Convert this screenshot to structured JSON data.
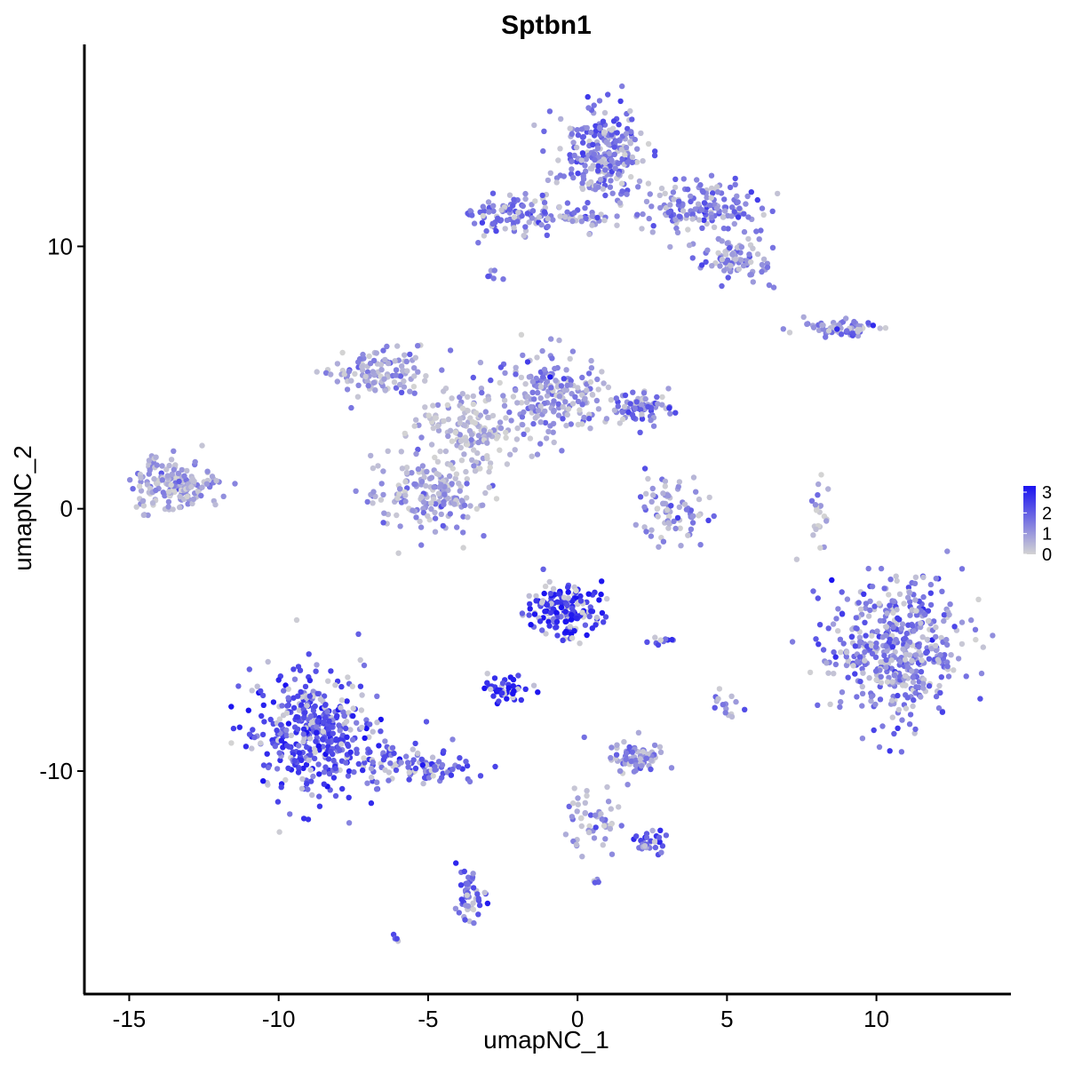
{
  "chart_data": {
    "type": "scatter",
    "title": "Sptbn1",
    "xlabel": "umapNC_1",
    "ylabel": "umapNC_2",
    "xlim": [
      -16.5,
      14.5
    ],
    "ylim": [
      -18.5,
      17.7
    ],
    "x_ticks": [
      -15,
      -10,
      -5,
      0,
      5,
      10
    ],
    "y_ticks": [
      -10,
      0,
      10
    ],
    "x_tick_labels": [
      "-15",
      "-10",
      "-5",
      "0",
      "5",
      "10"
    ],
    "y_tick_labels": [
      "-10",
      "0",
      "10"
    ],
    "grid": false,
    "legend_position": "right",
    "color_scale": {
      "low": "#d3d3d3",
      "high": "#1a12f0",
      "ticks": [
        0,
        1,
        2,
        3
      ],
      "tick_labels": [
        "0",
        "1",
        "2",
        "3"
      ],
      "range": [
        0,
        3.3
      ]
    },
    "clusters": [
      {
        "id": "top-right-body",
        "center": [
          0.8,
          13.4
        ],
        "spread": [
          0.9,
          1.3
        ],
        "count": 260,
        "expr": 1.6
      },
      {
        "id": "top-right-lobe",
        "center": [
          4.2,
          11.5
        ],
        "spread": [
          1.3,
          0.6
        ],
        "count": 150,
        "expr": 1.4
      },
      {
        "id": "top-right-lower",
        "center": [
          5.2,
          9.5
        ],
        "spread": [
          0.8,
          0.6
        ],
        "count": 90,
        "expr": 1.2
      },
      {
        "id": "top-arm-left",
        "center": [
          -2.3,
          11.2
        ],
        "spread": [
          1.0,
          0.5
        ],
        "count": 90,
        "expr": 1.7
      },
      {
        "id": "top-arm-mid",
        "center": [
          -0.2,
          11.1
        ],
        "spread": [
          1.2,
          0.3
        ],
        "count": 50,
        "expr": 1.3
      },
      {
        "id": "small-top-left",
        "center": [
          -2.9,
          8.8
        ],
        "spread": [
          0.2,
          0.2
        ],
        "count": 6,
        "expr": 1.3
      },
      {
        "id": "right-streak",
        "center": [
          8.3,
          6.9
        ],
        "spread": [
          0.8,
          0.2
        ],
        "count": 40,
        "expr": 1.1
      },
      {
        "id": "right-streak-end",
        "center": [
          9.4,
          6.9
        ],
        "spread": [
          0.4,
          0.25
        ],
        "count": 22,
        "expr": 2.0
      },
      {
        "id": "center-left-arm",
        "center": [
          -6.6,
          5.2
        ],
        "spread": [
          1.1,
          0.6
        ],
        "count": 120,
        "expr": 0.9
      },
      {
        "id": "center-hub",
        "center": [
          -3.6,
          3.0
        ],
        "spread": [
          1.2,
          1.0
        ],
        "count": 160,
        "expr": 0.5
      },
      {
        "id": "center-right-arm",
        "center": [
          -0.7,
          4.3
        ],
        "spread": [
          1.4,
          1.1
        ],
        "count": 200,
        "expr": 1.1
      },
      {
        "id": "center-right-tip",
        "center": [
          2.2,
          3.8
        ],
        "spread": [
          0.7,
          0.4
        ],
        "count": 70,
        "expr": 1.6
      },
      {
        "id": "center-bottom-lobe",
        "center": [
          -4.9,
          0.6
        ],
        "spread": [
          1.3,
          0.9
        ],
        "count": 180,
        "expr": 1.0
      },
      {
        "id": "far-left-cluster",
        "center": [
          -13.5,
          1.0
        ],
        "spread": [
          1.0,
          0.7
        ],
        "count": 170,
        "expr": 0.9
      },
      {
        "id": "mid-small-cluster",
        "center": [
          3.2,
          0.0
        ],
        "spread": [
          0.7,
          0.9
        ],
        "count": 80,
        "expr": 1.2
      },
      {
        "id": "right-thin-streak",
        "center": [
          8.1,
          0.0
        ],
        "spread": [
          0.2,
          0.9
        ],
        "count": 20,
        "expr": 0.5
      },
      {
        "id": "right-big-cluster",
        "center": [
          10.6,
          -5.3
        ],
        "spread": [
          1.6,
          1.8
        ],
        "count": 480,
        "expr": 1.6
      },
      {
        "id": "center-dark-upper",
        "center": [
          -0.4,
          -3.9
        ],
        "spread": [
          0.8,
          0.7
        ],
        "count": 180,
        "expr": 2.7
      },
      {
        "id": "center-dark-small",
        "center": [
          -2.4,
          -6.9
        ],
        "spread": [
          0.5,
          0.3
        ],
        "count": 50,
        "expr": 3.0
      },
      {
        "id": "small-bits-mid",
        "center": [
          2.9,
          -5.0
        ],
        "spread": [
          0.3,
          0.1
        ],
        "count": 10,
        "expr": 2.3
      },
      {
        "id": "small-right-dots",
        "center": [
          5.0,
          -7.5
        ],
        "spread": [
          0.3,
          0.3
        ],
        "count": 15,
        "expr": 1.3
      },
      {
        "id": "mid-low-cluster",
        "center": [
          2.0,
          -9.5
        ],
        "spread": [
          0.7,
          0.5
        ],
        "count": 70,
        "expr": 1.2
      },
      {
        "id": "big-lower-left",
        "center": [
          -8.8,
          -8.5
        ],
        "spread": [
          1.4,
          1.5
        ],
        "count": 420,
        "expr": 2.3
      },
      {
        "id": "lower-left-tail",
        "center": [
          -5.4,
          -9.8
        ],
        "spread": [
          1.3,
          0.5
        ],
        "count": 110,
        "expr": 2.0
      },
      {
        "id": "lower-left-bottom",
        "center": [
          -3.6,
          -14.7
        ],
        "spread": [
          0.35,
          0.7
        ],
        "count": 50,
        "expr": 1.9
      },
      {
        "id": "lower-mid-branch",
        "center": [
          0.5,
          -11.8
        ],
        "spread": [
          0.5,
          0.9
        ],
        "count": 50,
        "expr": 1.0
      },
      {
        "id": "lower-mid-branch-end",
        "center": [
          2.4,
          -12.7
        ],
        "spread": [
          0.4,
          0.3
        ],
        "count": 30,
        "expr": 1.8
      },
      {
        "id": "tiny-bottom-1",
        "center": [
          -6.1,
          -16.4
        ],
        "spread": [
          0.1,
          0.1
        ],
        "count": 4,
        "expr": 2.5
      },
      {
        "id": "tiny-bottom-2",
        "center": [
          0.6,
          -14.2
        ],
        "spread": [
          0.1,
          0.1
        ],
        "count": 4,
        "expr": 2.0
      }
    ]
  }
}
